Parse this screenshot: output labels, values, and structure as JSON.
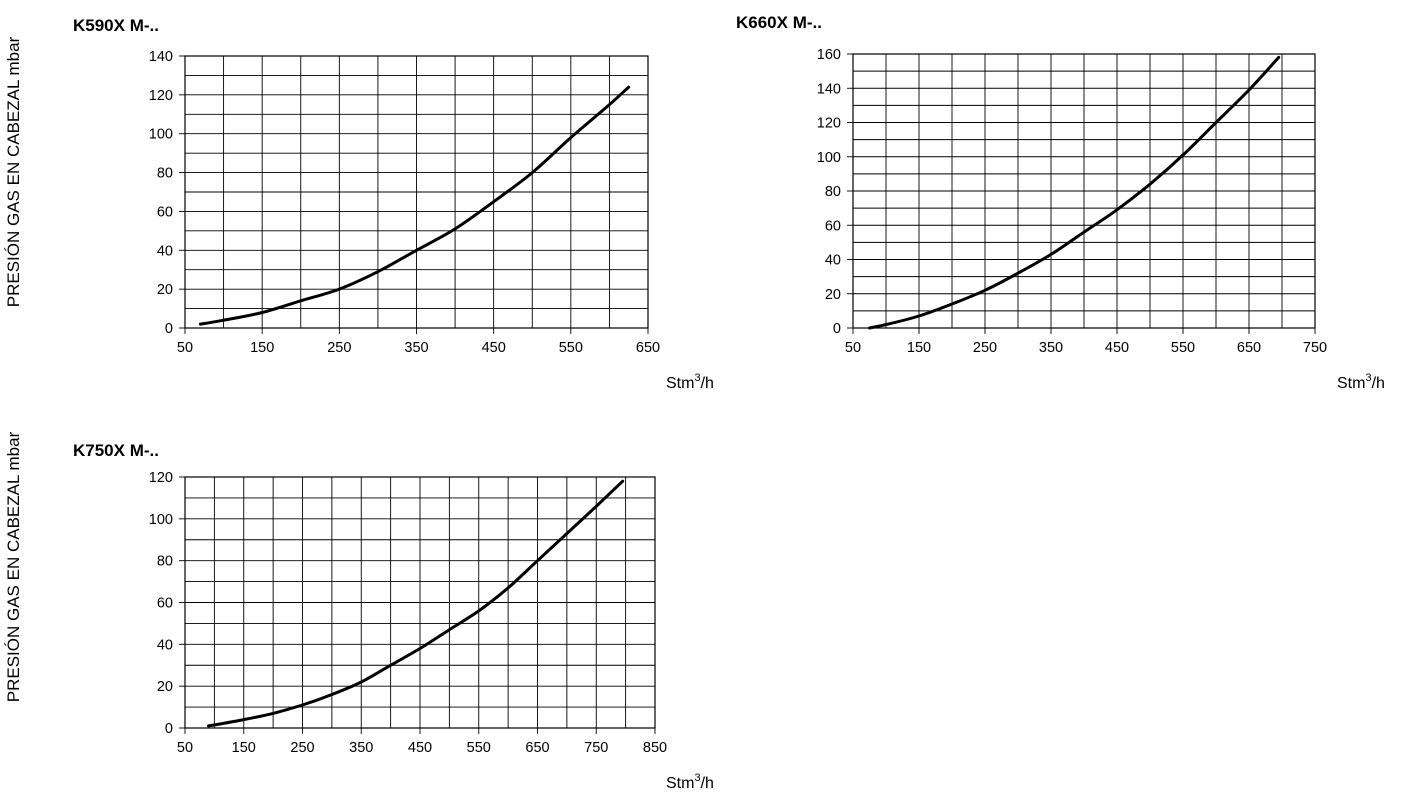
{
  "side_labels": {
    "top": "PRESIÓN GAS EN CABEZAL mbar",
    "bottom": "PRESIÓN GAS EN CABEZAL mbar"
  },
  "chart_data": [
    {
      "type": "line",
      "title": "K590X M-..",
      "xlabel": "Stm3/h",
      "xlabel_base": "Stm",
      "xlabel_sup": "3",
      "xlabel_tail": "/h",
      "xlim": [
        50,
        650
      ],
      "ylim": [
        0,
        140
      ],
      "x_ticks": [
        50,
        150,
        250,
        350,
        450,
        550,
        650
      ],
      "y_ticks": [
        0,
        20,
        40,
        60,
        80,
        100,
        120,
        140
      ],
      "x_grid_step": 50,
      "y_grid_step": 10,
      "grid": true,
      "series": [
        {
          "x": [
            70,
            100,
            150,
            200,
            250,
            300,
            350,
            400,
            450,
            500,
            550,
            600,
            625
          ],
          "y": [
            2,
            4,
            8,
            14,
            20,
            29,
            40,
            51,
            65,
            80,
            98,
            115,
            124
          ]
        }
      ]
    },
    {
      "type": "line",
      "title": "K660X M-..",
      "xlabel": "Stm3/h",
      "xlabel_base": "Stm",
      "xlabel_sup": "3",
      "xlabel_tail": "/h",
      "xlim": [
        50,
        750
      ],
      "ylim": [
        0,
        160
      ],
      "x_ticks": [
        50,
        150,
        250,
        350,
        450,
        550,
        650,
        750
      ],
      "y_ticks": [
        0,
        20,
        40,
        60,
        80,
        100,
        120,
        140,
        160
      ],
      "x_grid_step": 50,
      "y_grid_step": 10,
      "grid": true,
      "series": [
        {
          "x": [
            75,
            100,
            150,
            200,
            250,
            300,
            350,
            400,
            450,
            500,
            550,
            600,
            650,
            695
          ],
          "y": [
            0,
            2,
            7,
            14,
            22,
            32,
            43,
            56,
            69,
            84,
            101,
            120,
            139,
            158
          ]
        }
      ]
    },
    {
      "type": "line",
      "title": "K750X M-..",
      "xlabel": "Stm3/h",
      "xlabel_base": "Stm",
      "xlabel_sup": "3",
      "xlabel_tail": "/h",
      "xlim": [
        50,
        850
      ],
      "ylim": [
        0,
        120
      ],
      "x_ticks": [
        50,
        150,
        250,
        350,
        450,
        550,
        650,
        750,
        850
      ],
      "y_ticks": [
        0,
        20,
        40,
        60,
        80,
        100,
        120
      ],
      "x_grid_step": 50,
      "y_grid_step": 10,
      "grid": true,
      "series": [
        {
          "x": [
            90,
            150,
            200,
            250,
            300,
            350,
            400,
            450,
            500,
            550,
            600,
            650,
            700,
            750,
            795
          ],
          "y": [
            1,
            4,
            7,
            11,
            16,
            22,
            30,
            38,
            47,
            56,
            67,
            80,
            93,
            106,
            118
          ]
        }
      ]
    }
  ]
}
